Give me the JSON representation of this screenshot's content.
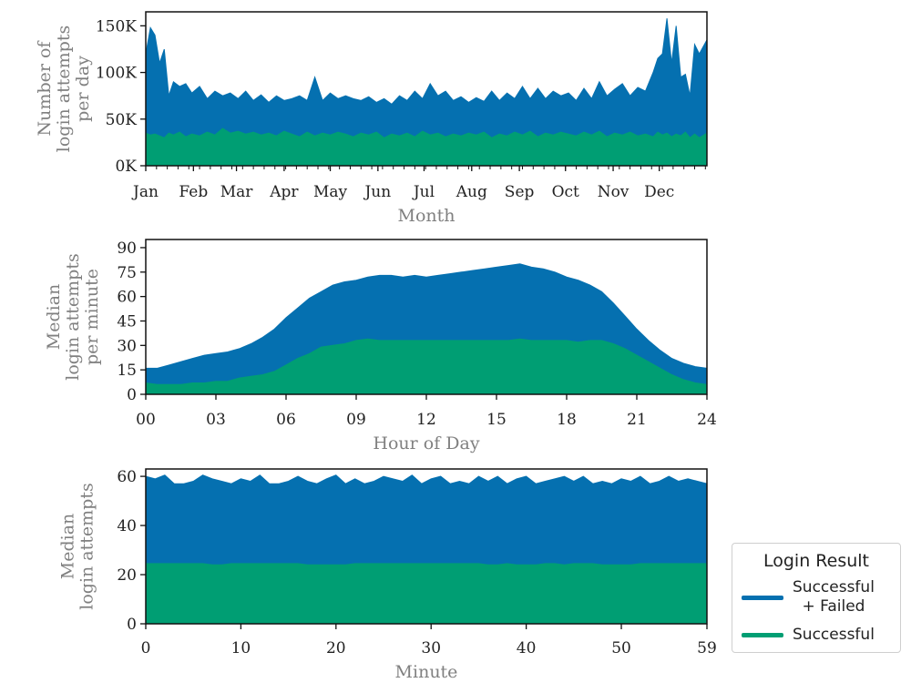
{
  "colors": {
    "total": "#0570b0",
    "success": "#009e73",
    "axis": "#111111",
    "label": "#808080"
  },
  "legend": {
    "title": "Login Result",
    "items": [
      {
        "label": "Successful\n+ Failed",
        "color": "#0570b0"
      },
      {
        "label": "Successful",
        "color": "#009e73"
      }
    ]
  },
  "chart_data": [
    {
      "type": "area",
      "title": "",
      "xlabel": "Month",
      "ylabel": [
        "Number of",
        "login attempts",
        "per day"
      ],
      "xlim": [
        0,
        365
      ],
      "ylim": [
        0,
        165000
      ],
      "yticks": [
        0,
        50000,
        100000,
        150000
      ],
      "yticklabels": [
        "0K",
        "50K",
        "100K",
        "150K"
      ],
      "xticks": [
        0,
        31,
        59,
        90,
        120,
        151,
        181,
        212,
        243,
        273,
        304,
        334
      ],
      "xticklabels": [
        "Jan",
        "Feb",
        "Mar",
        "Apr",
        "May",
        "Jun",
        "Jul",
        "Aug",
        "Sep",
        "Oct",
        "Nov",
        "Dec"
      ],
      "x": [
        0,
        3,
        6,
        9,
        12,
        15,
        18,
        22,
        26,
        30,
        35,
        40,
        45,
        50,
        55,
        60,
        65,
        70,
        75,
        80,
        85,
        90,
        95,
        100,
        105,
        110,
        115,
        120,
        125,
        130,
        135,
        140,
        145,
        150,
        155,
        160,
        165,
        170,
        175,
        180,
        185,
        190,
        195,
        200,
        205,
        210,
        215,
        220,
        225,
        230,
        235,
        240,
        245,
        250,
        255,
        260,
        265,
        270,
        275,
        280,
        285,
        290,
        295,
        300,
        305,
        310,
        315,
        320,
        325,
        330,
        333,
        336,
        339,
        342,
        345,
        348,
        351,
        354,
        357,
        360,
        365
      ],
      "series": [
        {
          "name": "Successful + Failed",
          "color": "#0570b0",
          "values": [
            120000,
            148000,
            140000,
            110000,
            125000,
            75000,
            90000,
            85000,
            88000,
            78000,
            85000,
            72000,
            80000,
            75000,
            78000,
            72000,
            80000,
            70000,
            76000,
            68000,
            75000,
            70000,
            72000,
            75000,
            70000,
            95000,
            70000,
            78000,
            72000,
            75000,
            72000,
            70000,
            74000,
            68000,
            72000,
            66000,
            75000,
            70000,
            80000,
            72000,
            88000,
            75000,
            80000,
            70000,
            74000,
            68000,
            73000,
            69000,
            80000,
            70000,
            78000,
            72000,
            85000,
            72000,
            83000,
            72000,
            80000,
            75000,
            78000,
            70000,
            83000,
            72000,
            90000,
            75000,
            82000,
            88000,
            75000,
            84000,
            80000,
            100000,
            115000,
            120000,
            158000,
            110000,
            150000,
            95000,
            98000,
            75000,
            130000,
            120000,
            135000
          ]
        },
        {
          "name": "Successful",
          "color": "#009e73",
          "values": [
            35000,
            33000,
            34000,
            32000,
            30000,
            35000,
            33000,
            36000,
            31000,
            34000,
            32000,
            36000,
            33000,
            40000,
            35000,
            37000,
            34000,
            36000,
            33000,
            35000,
            32000,
            37000,
            34000,
            31000,
            36000,
            32000,
            35000,
            33000,
            36000,
            34000,
            31000,
            35000,
            33000,
            36000,
            30000,
            34000,
            32000,
            35000,
            31000,
            37000,
            33000,
            35000,
            31000,
            34000,
            32000,
            35000,
            33000,
            36000,
            30000,
            34000,
            32000,
            36000,
            33000,
            37000,
            31000,
            35000,
            33000,
            36000,
            34000,
            32000,
            36000,
            33000,
            37000,
            31000,
            35000,
            33000,
            36000,
            32000,
            34000,
            31000,
            36000,
            33000,
            35000,
            31000,
            34000,
            32000,
            36000,
            30000,
            34000,
            30000,
            35000
          ]
        }
      ]
    },
    {
      "type": "area",
      "title": "",
      "xlabel": "Hour of Day",
      "ylabel": [
        "Median",
        "login attempts",
        "per minute"
      ],
      "xlim": [
        0,
        24
      ],
      "ylim": [
        0,
        95
      ],
      "yticks": [
        0,
        15,
        30,
        45,
        60,
        75,
        90
      ],
      "yticklabels": [
        "0",
        "15",
        "30",
        "45",
        "60",
        "75",
        "90"
      ],
      "xticks": [
        0,
        3,
        6,
        9,
        12,
        15,
        18,
        21,
        24
      ],
      "xticklabels": [
        "00",
        "03",
        "06",
        "09",
        "12",
        "15",
        "18",
        "21",
        "24"
      ],
      "x": [
        0,
        0.5,
        1,
        1.5,
        2,
        2.5,
        3,
        3.5,
        4,
        4.5,
        5,
        5.5,
        6,
        6.5,
        7,
        7.5,
        8,
        8.5,
        9,
        9.5,
        10,
        10.5,
        11,
        11.5,
        12,
        12.5,
        13,
        13.5,
        14,
        14.5,
        15,
        15.5,
        16,
        16.5,
        17,
        17.5,
        18,
        18.5,
        19,
        19.5,
        20,
        20.5,
        21,
        21.5,
        22,
        22.5,
        23,
        23.5,
        24
      ],
      "series": [
        {
          "name": "Successful + Failed",
          "color": "#0570b0",
          "values": [
            16,
            16,
            18,
            20,
            22,
            24,
            25,
            26,
            28,
            31,
            35,
            40,
            47,
            53,
            59,
            63,
            67,
            69,
            70,
            72,
            73,
            73,
            72,
            73,
            72,
            73,
            74,
            75,
            76,
            77,
            78,
            79,
            80,
            78,
            77,
            75,
            72,
            70,
            67,
            63,
            56,
            48,
            40,
            33,
            27,
            22,
            19,
            17,
            16
          ]
        },
        {
          "name": "Successful",
          "color": "#009e73",
          "values": [
            7,
            6,
            6,
            6,
            7,
            7,
            8,
            8,
            10,
            11,
            12,
            14,
            18,
            22,
            25,
            29,
            30,
            31,
            33,
            34,
            33,
            33,
            33,
            33,
            33,
            33,
            33,
            33,
            33,
            33,
            33,
            33,
            34,
            33,
            33,
            33,
            33,
            32,
            33,
            33,
            31,
            28,
            24,
            20,
            16,
            12,
            9,
            7,
            6
          ]
        }
      ]
    },
    {
      "type": "area",
      "title": "",
      "xlabel": "Minute",
      "ylabel": [
        "Median",
        "login attempts"
      ],
      "xlim": [
        0,
        59
      ],
      "ylim": [
        0,
        63
      ],
      "yticks": [
        0,
        20,
        40,
        60
      ],
      "yticklabels": [
        "0",
        "20",
        "40",
        "60"
      ],
      "xticks": [
        0,
        10,
        20,
        30,
        40,
        50,
        59
      ],
      "xticklabels": [
        "0",
        "10",
        "20",
        "30",
        "40",
        "50",
        "59"
      ],
      "x": [
        0,
        1,
        2,
        3,
        4,
        5,
        6,
        7,
        8,
        9,
        10,
        11,
        12,
        13,
        14,
        15,
        16,
        17,
        18,
        19,
        20,
        21,
        22,
        23,
        24,
        25,
        26,
        27,
        28,
        29,
        30,
        31,
        32,
        33,
        34,
        35,
        36,
        37,
        38,
        39,
        40,
        41,
        42,
        43,
        44,
        45,
        46,
        47,
        48,
        49,
        50,
        51,
        52,
        53,
        54,
        55,
        56,
        57,
        58,
        59
      ],
      "series": [
        {
          "name": "Successful + Failed",
          "color": "#0570b0",
          "values": [
            60,
            59,
            60.5,
            57,
            57,
            58,
            60.5,
            59,
            58,
            57,
            59,
            58,
            60.5,
            57,
            57,
            58,
            60,
            58,
            57,
            59,
            60.5,
            57,
            59,
            57,
            58,
            60,
            59,
            58,
            60.5,
            57,
            59,
            60,
            57,
            58,
            57,
            60,
            58,
            60,
            57,
            59,
            60,
            57,
            58,
            59,
            60,
            58,
            60,
            57,
            58,
            57,
            59,
            58,
            60,
            57,
            58,
            60,
            58,
            59,
            58,
            57
          ]
        },
        {
          "name": "Successful",
          "color": "#009e73",
          "values": [
            24.5,
            24.5,
            24.5,
            24.5,
            24.5,
            24.5,
            24.5,
            24,
            24,
            24.5,
            24.5,
            24.5,
            24.5,
            24.5,
            24.5,
            24.5,
            24.5,
            24,
            24,
            24,
            24,
            24,
            24.5,
            24.5,
            24.5,
            24.5,
            24.5,
            24.5,
            24.5,
            24.5,
            24.5,
            24.5,
            24.5,
            24.5,
            24.5,
            24.5,
            24,
            24,
            24.5,
            24,
            24,
            24,
            24.5,
            24.5,
            24,
            24.5,
            24.5,
            24.5,
            24,
            24,
            24,
            24,
            24.5,
            24.5,
            24.5,
            24.5,
            24.5,
            24.5,
            24.5,
            24.5
          ]
        }
      ]
    }
  ]
}
